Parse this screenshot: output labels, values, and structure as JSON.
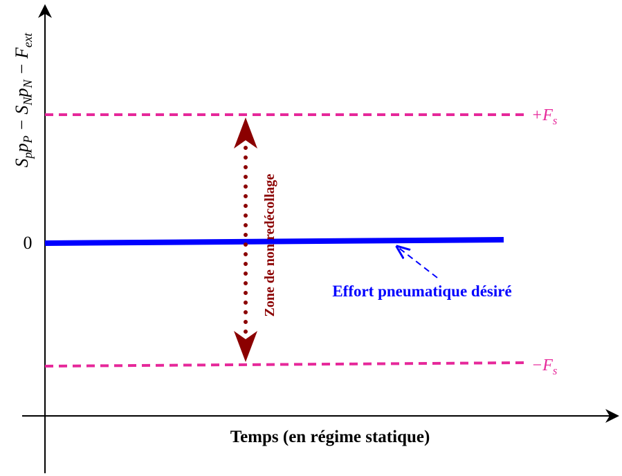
{
  "y_axis_label": [
    {
      "text": "S"
    },
    {
      "text": "p",
      "sub": true
    },
    {
      "text": "p"
    },
    {
      "text": "P",
      "sub": true
    },
    {
      "text": " − S"
    },
    {
      "text": "N",
      "sub": true
    },
    {
      "text": "p"
    },
    {
      "text": "N",
      "sub": true
    },
    {
      "text": " − F"
    },
    {
      "text": "ext",
      "sub": true
    }
  ],
  "zero_label": "0",
  "upper_label": [
    {
      "text": "+F"
    },
    {
      "text": "s",
      "sub": true
    }
  ],
  "lower_label": [
    {
      "text": "−F"
    },
    {
      "text": "s",
      "sub": true
    }
  ],
  "zone_label": "Zone de non redécollage",
  "effort_label": "Effort pneumatique désiré",
  "x_axis_label": "Temps (en régime statique)"
}
